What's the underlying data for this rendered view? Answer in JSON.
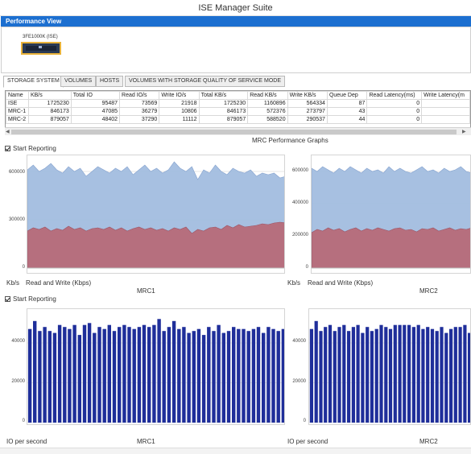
{
  "window": {
    "title": "ISE Manager Suite"
  },
  "panel": {
    "title": "Performance View"
  },
  "device": {
    "label": "3FE1000K (ISE)"
  },
  "tabs": [
    {
      "label": "STORAGE SYSTEM",
      "active": true
    },
    {
      "label": "VOLUMES",
      "active": false
    },
    {
      "label": "HOSTS",
      "active": false
    },
    {
      "label": "VOLUMES WITH STORAGE QUALITY OF SERVICE MODE",
      "active": false
    }
  ],
  "table": {
    "columns": [
      "Name",
      "KB/s",
      "Total IO",
      "Read IO/s",
      "Write IO/s",
      "Total KB/s",
      "Read KB/s",
      "Write KB/s",
      "Queue Dep",
      "Read Latency(ms)",
      "Write Latency(m"
    ],
    "rows": [
      [
        "ISE",
        "1725230",
        "95487",
        "73569",
        "21918",
        "1725230",
        "1160896",
        "564334",
        "87",
        "0",
        ""
      ],
      [
        "MRC-1",
        "846173",
        "47085",
        "36279",
        "10806",
        "846173",
        "572376",
        "273797",
        "43",
        "0",
        ""
      ],
      [
        "MRC-2",
        "879057",
        "48402",
        "37290",
        "11112",
        "879057",
        "588520",
        "290537",
        "44",
        "0",
        ""
      ]
    ]
  },
  "graphs_title": "MRC Performance Graphs",
  "reporting": {
    "label_top": "Start Reporting",
    "label_bottom": "Start Reporting"
  },
  "colors": {
    "header": "#1c6fd0",
    "write_area": "#a3bde0",
    "read_area": "#b76b79",
    "bars": "#1f2e9a"
  },
  "chart_data": [
    {
      "type": "area",
      "name": "MRC1",
      "unit": "Kb/s",
      "series_label": "Read and Write (Kbps)",
      "ylim": [
        0,
        700000
      ],
      "yticks": [
        "600000",
        "300000",
        "0"
      ],
      "yticks_values": [
        600000,
        300000,
        0
      ],
      "series": [
        {
          "name": "Write",
          "values": [
            610000,
            640000,
            600000,
            620000,
            650000,
            610000,
            590000,
            630000,
            600000,
            620000,
            570000,
            600000,
            630000,
            610000,
            590000,
            620000,
            600000,
            630000,
            580000,
            610000,
            640000,
            600000,
            620000,
            590000,
            610000,
            660000,
            620000,
            600000,
            630000,
            550000,
            610000,
            590000,
            640000,
            600000,
            580000,
            620000,
            600000,
            590000,
            610000,
            570000,
            590000,
            580000,
            590000,
            560000,
            570000
          ]
        },
        {
          "name": "Read",
          "values": [
            230000,
            250000,
            240000,
            255000,
            230000,
            245000,
            235000,
            260000,
            240000,
            250000,
            230000,
            245000,
            250000,
            240000,
            255000,
            235000,
            250000,
            230000,
            245000,
            255000,
            240000,
            250000,
            235000,
            245000,
            230000,
            250000,
            240000,
            255000,
            215000,
            240000,
            230000,
            250000,
            255000,
            240000,
            265000,
            250000,
            270000,
            255000,
            260000,
            265000,
            275000,
            270000,
            280000,
            285000,
            280000
          ]
        }
      ]
    },
    {
      "type": "area",
      "name": "MRC2",
      "unit": "Kb/s",
      "series_label": "Read and Write (Kbps)",
      "ylim": [
        0,
        700000
      ],
      "yticks": [
        "600000",
        "400000",
        "200000",
        "0"
      ],
      "yticks_values": [
        600000,
        400000,
        200000,
        0
      ],
      "series": [
        {
          "name": "Write",
          "values": [
            620000,
            600000,
            630000,
            610000,
            590000,
            620000,
            600000,
            630000,
            610000,
            590000,
            620000,
            600000,
            610000,
            590000,
            630000,
            600000,
            620000,
            600000,
            590000,
            610000,
            630000,
            600000,
            610000,
            590000,
            620000,
            600000,
            610000,
            630000,
            600000,
            590000
          ]
        },
        {
          "name": "Read",
          "values": [
            220000,
            240000,
            230000,
            250000,
            235000,
            245000,
            225000,
            240000,
            250000,
            230000,
            245000,
            235000,
            250000,
            240000,
            230000,
            245000,
            250000,
            235000,
            240000,
            225000,
            245000,
            240000,
            250000,
            230000,
            240000,
            250000,
            235000,
            245000,
            240000,
            250000
          ]
        }
      ]
    },
    {
      "type": "bar",
      "name": "MRC1",
      "unit": "IO per second",
      "ylim": [
        0,
        55000
      ],
      "yticks": [
        "40000",
        "20000",
        "0"
      ],
      "yticks_values": [
        40000,
        20000,
        0
      ],
      "values": [
        47000,
        51000,
        46000,
        48000,
        46000,
        45000,
        49000,
        48000,
        47000,
        49000,
        44000,
        49000,
        50000,
        45000,
        48000,
        47000,
        49000,
        46000,
        48000,
        49000,
        48000,
        47000,
        48000,
        49000,
        48000,
        49000,
        52000,
        46000,
        48000,
        51000,
        47000,
        48000,
        45000,
        46000,
        47000,
        44000,
        48000,
        46000,
        49000,
        45000,
        46000,
        48000,
        47000,
        47000,
        46000,
        47000,
        48000,
        45000,
        48000,
        47000,
        46000,
        47000
      ]
    },
    {
      "type": "bar",
      "name": "MRC2",
      "unit": "IO per second",
      "ylim": [
        0,
        55000
      ],
      "yticks": [
        "40000",
        "20000",
        "0"
      ],
      "yticks_values": [
        40000,
        20000,
        0
      ],
      "values": [
        47000,
        51000,
        46000,
        48000,
        49000,
        46000,
        48000,
        49000,
        46000,
        48000,
        49000,
        45000,
        48000,
        46000,
        47000,
        49000,
        48000,
        47000,
        49000,
        49000,
        49000,
        49000,
        48000,
        49000,
        47000,
        48000,
        47000,
        46000,
        48000,
        45000,
        47000,
        48000,
        48000,
        49000,
        45000
      ]
    }
  ]
}
